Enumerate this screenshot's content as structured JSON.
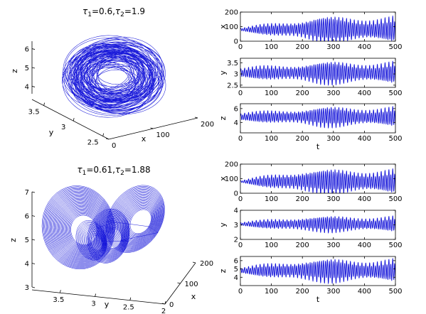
{
  "colors": {
    "trace": "#1010d8",
    "axis": "#000000",
    "background": "#ffffff"
  },
  "chart_data": [
    {
      "id": "panel-a-3d",
      "type": "line",
      "projection": "3d",
      "title": "τ1=0.6,τ2=1.9",
      "title_parts": [
        "τ",
        "1",
        "=0.6,",
        "τ",
        "2",
        "=1.9"
      ],
      "xlabel": "x",
      "ylabel": "y",
      "zlabel": "z",
      "x_ticks": [
        "0",
        "100",
        "200"
      ],
      "y_ticks": [
        "2.5",
        "3",
        "3.5"
      ],
      "z_ticks": [
        "4",
        "5",
        "6"
      ],
      "xlim": [
        0,
        200
      ],
      "ylim": [
        2.4,
        3.7
      ],
      "zlim": [
        3.6,
        6.4
      ],
      "attractor": {
        "x_range": [
          10,
          180
        ],
        "y_range": [
          2.55,
          3.55
        ],
        "z_range": [
          3.8,
          6.1
        ]
      }
    },
    {
      "id": "panel-a-x",
      "type": "line",
      "ylabel": "x",
      "xlim": [
        0,
        500
      ],
      "ylim": [
        0,
        200
      ],
      "x_ticks": [
        "0",
        "100",
        "200",
        "300",
        "400",
        "500"
      ],
      "y_ticks": [
        "0",
        "100",
        "200"
      ],
      "series": [
        {
          "base": 80,
          "amp_start": 8,
          "amp_end": 90,
          "grow_until": 250
        }
      ]
    },
    {
      "id": "panel-a-y",
      "type": "line",
      "ylabel": "y",
      "xlim": [
        0,
        500
      ],
      "ylim": [
        2.4,
        3.7
      ],
      "x_ticks": [
        "0",
        "100",
        "200",
        "300",
        "400",
        "500"
      ],
      "y_ticks": [
        "2.5",
        "3",
        "3.5"
      ],
      "series": [
        {
          "base": 3.05,
          "amp_start": 0.2,
          "amp_end": 0.5,
          "grow_until": 250
        }
      ]
    },
    {
      "id": "panel-a-z",
      "type": "line",
      "ylabel": "z",
      "xlabel": "t",
      "xlim": [
        0,
        500
      ],
      "ylim": [
        2.5,
        6.7
      ],
      "x_ticks": [
        "0",
        "100",
        "200",
        "300",
        "400",
        "500"
      ],
      "y_ticks": [
        "4",
        "6"
      ],
      "series": [
        {
          "base": 4.8,
          "amp_start": 0.5,
          "amp_end": 1.45,
          "grow_until": 250
        }
      ]
    },
    {
      "id": "panel-b-3d",
      "type": "line",
      "projection": "3d",
      "title": "τ1=0.61,τ2=1.88",
      "title_parts": [
        "τ",
        "1",
        "=0.61,",
        "τ",
        "2",
        "=1.88"
      ],
      "xlabel": "x",
      "ylabel": "y",
      "zlabel": "z",
      "x_ticks": [
        "0",
        "100",
        "200"
      ],
      "y_ticks": [
        "2",
        "2.5",
        "3",
        "3.5"
      ],
      "z_ticks": [
        "3",
        "4",
        "5",
        "6",
        "7"
      ],
      "xlim": [
        0,
        200
      ],
      "ylim": [
        2,
        3.9
      ],
      "zlim": [
        3,
        7
      ],
      "attractor": {
        "x_range": [
          10,
          190
        ],
        "y_range": [
          2.2,
          3.8
        ],
        "z_range": [
          3.6,
          6.8
        ]
      }
    },
    {
      "id": "panel-b-x",
      "type": "line",
      "ylabel": "x",
      "xlim": [
        0,
        500
      ],
      "ylim": [
        0,
        200
      ],
      "x_ticks": [
        "0",
        "100",
        "200",
        "300",
        "400",
        "500"
      ],
      "y_ticks": [
        "0",
        "100",
        "200"
      ],
      "series": [
        {
          "base": 80,
          "amp_start": 5,
          "amp_end": 85,
          "grow_until": 200
        }
      ]
    },
    {
      "id": "panel-b-y",
      "type": "line",
      "ylabel": "y",
      "xlim": [
        0,
        500
      ],
      "ylim": [
        2,
        4
      ],
      "x_ticks": [
        "0",
        "100",
        "200",
        "300",
        "400",
        "500"
      ],
      "y_ticks": [
        "2",
        "3",
        "4"
      ],
      "series": [
        {
          "base": 3.05,
          "amp_start": 0.1,
          "amp_end": 0.55,
          "grow_until": 200
        }
      ]
    },
    {
      "id": "panel-b-z",
      "type": "line",
      "ylabel": "z",
      "xlabel": "t",
      "xlim": [
        0,
        500
      ],
      "ylim": [
        3,
        6.5
      ],
      "x_ticks": [
        "0",
        "100",
        "200",
        "300",
        "400",
        "500"
      ],
      "y_ticks": [
        "4",
        "5",
        "6"
      ],
      "series": [
        {
          "base": 4.8,
          "amp_start": 0.3,
          "amp_end": 1.4,
          "grow_until": 200
        }
      ]
    }
  ]
}
